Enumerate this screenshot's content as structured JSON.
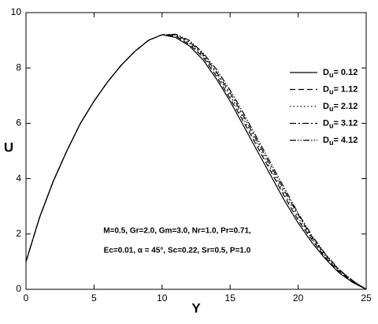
{
  "chart_data": {
    "type": "line",
    "xlabel": "Y",
    "ylabel": "U",
    "x": [
      0,
      1,
      2,
      3,
      4,
      5,
      6,
      7,
      8,
      9,
      10,
      11,
      12,
      13,
      14,
      15,
      16,
      17,
      18,
      19,
      20,
      21,
      22,
      23,
      24,
      25
    ],
    "series": [
      {
        "name": "Du= 0.12",
        "color": "#000000",
        "dash": "none",
        "values": [
          1.0,
          2.6,
          3.9,
          5.0,
          6.0,
          6.8,
          7.5,
          8.1,
          8.6,
          9.0,
          9.2,
          9.1,
          8.8,
          8.3,
          7.6,
          6.8,
          5.9,
          5.0,
          4.1,
          3.2,
          2.4,
          1.7,
          1.1,
          0.6,
          0.25,
          0
        ]
      },
      {
        "name": "Du= 1.12",
        "color": "#000000",
        "dash": "7,4",
        "values": [
          1.0,
          2.6,
          3.9,
          5.0,
          6.0,
          6.8,
          7.5,
          8.1,
          8.6,
          9.0,
          9.2,
          9.15,
          8.85,
          8.4,
          7.7,
          6.9,
          6.05,
          5.15,
          4.25,
          3.35,
          2.5,
          1.8,
          1.15,
          0.65,
          0.28,
          0
        ]
      },
      {
        "name": "Du= 2.12",
        "color": "#000000",
        "dash": "1.5,3",
        "values": [
          1.0,
          2.6,
          3.9,
          5.0,
          6.0,
          6.8,
          7.5,
          8.1,
          8.6,
          9.0,
          9.2,
          9.18,
          8.9,
          8.45,
          7.8,
          7.0,
          6.15,
          5.25,
          4.35,
          3.45,
          2.6,
          1.85,
          1.2,
          0.68,
          0.3,
          0
        ]
      },
      {
        "name": "Du= 3.12",
        "color": "#000000",
        "dash": "8,3,2,3",
        "values": [
          1.0,
          2.6,
          3.9,
          5.0,
          6.0,
          6.8,
          7.5,
          8.1,
          8.6,
          9.0,
          9.2,
          9.2,
          8.95,
          8.5,
          7.85,
          7.1,
          6.25,
          5.35,
          4.45,
          3.55,
          2.7,
          1.9,
          1.25,
          0.7,
          0.3,
          0
        ]
      },
      {
        "name": "Du= 4.12",
        "color": "#000000",
        "dash": "8,2,1.5,2,1.5,2",
        "values": [
          1.0,
          2.6,
          3.9,
          5.0,
          6.0,
          6.8,
          7.5,
          8.1,
          8.6,
          9.0,
          9.2,
          9.22,
          9.0,
          8.55,
          7.95,
          7.2,
          6.35,
          5.45,
          4.55,
          3.65,
          2.75,
          1.95,
          1.28,
          0.72,
          0.32,
          0
        ]
      }
    ],
    "xlim": [
      0,
      25
    ],
    "xticks": [
      0,
      5,
      10,
      15,
      20,
      25
    ],
    "ylim": [
      0,
      10
    ],
    "yticks": [
      0,
      2,
      4,
      6,
      8,
      10
    ],
    "annotations": [
      "M=0.5, Gr=2.0, Gm=3.0, Nr=1.0, Pr=0.71,",
      "Ec=0.01, α = 45°, Sc=0.22, Sr=0.5, P=1.0"
    ],
    "legend": "upper right"
  }
}
